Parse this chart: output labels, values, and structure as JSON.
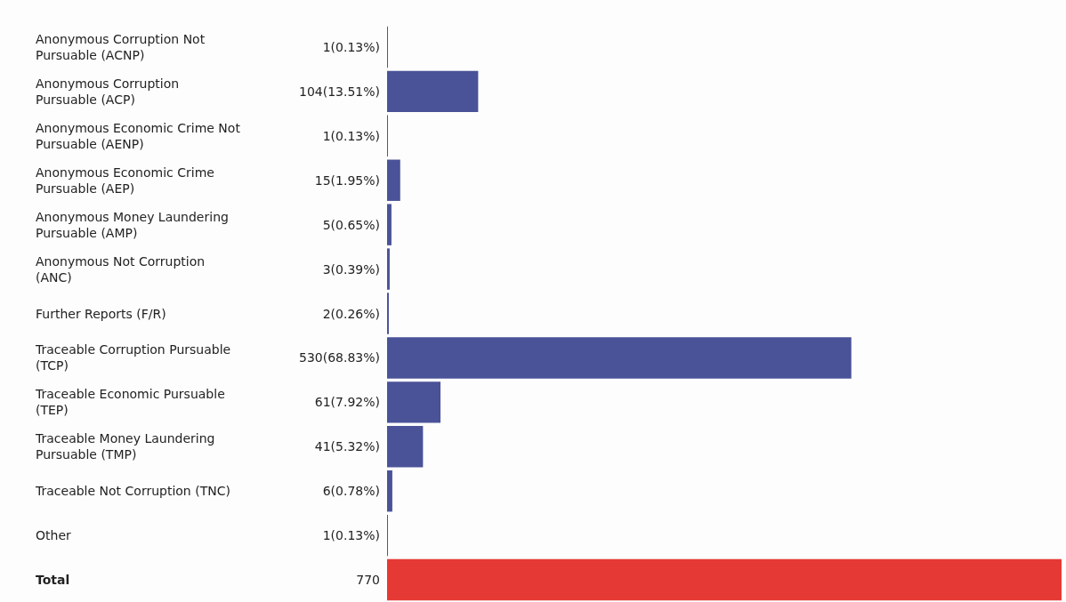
{
  "chart_data": {
    "type": "bar",
    "orientation": "horizontal",
    "categories": [
      "Anonymous Corruption Not Pursuable (ACNP)",
      "Anonymous Corruption Pursuable (ACP)",
      "Anonymous Economic Crime Not Pursuable (AENP)",
      "Anonymous Economic Crime Pursuable (AEP)",
      "Anonymous Money Laundering Pursuable (AMP)",
      "Anonymous Not Corruption (ANC)",
      "Further Reports (F/R)",
      "Traceable Corruption Pursuable (TCP)",
      "Traceable Economic Pursuable (TEP)",
      "Traceable Money Laundering Pursuable (TMP)",
      "Traceable Not Corruption (TNC)",
      "Other",
      "Total"
    ],
    "values": [
      1,
      104,
      1,
      15,
      5,
      3,
      2,
      530,
      61,
      41,
      6,
      1,
      770
    ],
    "value_labels": [
      "1(0.13%)",
      "104(13.51%)",
      "1(0.13%)",
      "15(1.95%)",
      "5(0.65%)",
      "3(0.39%)",
      "2(0.26%)",
      "530(68.83%)",
      "61(7.92%)",
      "41(5.32%)",
      "6(0.78%)",
      "1(0.13%)",
      "770"
    ],
    "colors": [
      "#4a5298",
      "#4a5298",
      "#4a5298",
      "#4a5298",
      "#4a5298",
      "#4a5298",
      "#4a5298",
      "#4a5298",
      "#4a5298",
      "#4a5298",
      "#4a5298",
      "#4a5298",
      "#e53935"
    ],
    "tick_labels": "y"
  }
}
